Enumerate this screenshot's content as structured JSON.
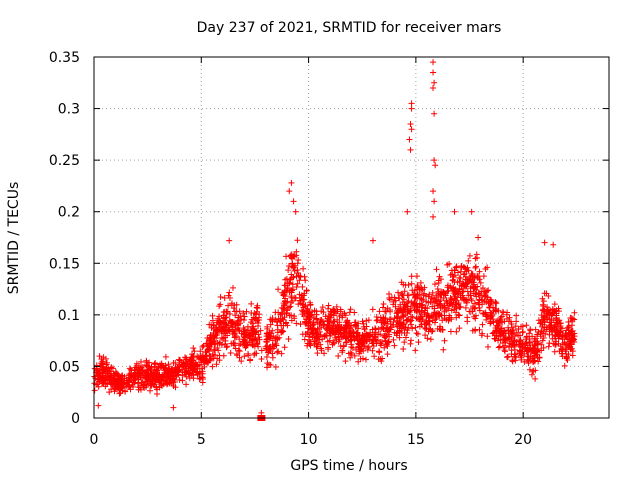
{
  "chart_data": {
    "type": "scatter",
    "title": "Day 237 of 2021, SRMTID for receiver mars",
    "xlabel": "GPS time / hours",
    "ylabel": "SRMTID / TECUs",
    "xlim": [
      0,
      24
    ],
    "ylim": [
      0,
      0.35
    ],
    "x_ticks": [
      0,
      5,
      10,
      15,
      20
    ],
    "x_tick_labels": [
      "0",
      "5",
      "10",
      "15",
      "20"
    ],
    "y_ticks": [
      0,
      0.05,
      0.1,
      0.15,
      0.2,
      0.25,
      0.3,
      0.35
    ],
    "y_tick_labels": [
      "0",
      "0.05",
      "0.1",
      "0.15",
      "0.2",
      "0.25",
      "0.3",
      "0.35"
    ],
    "grid": true,
    "marker": "+",
    "color": "#ff0000",
    "series": [
      {
        "name": "SRMTID",
        "envelope_note": "dense scatter summarised by its typical level (y_mid) and spread per hour",
        "x": [
          0,
          0.5,
          1,
          1.5,
          2,
          2.5,
          3,
          3.5,
          4,
          4.5,
          5,
          5.5,
          6,
          6.5,
          7,
          7.5,
          8,
          8.5,
          9,
          9.5,
          10,
          10.5,
          11,
          11.5,
          12,
          12.5,
          13,
          13.5,
          14,
          14.5,
          15,
          15.5,
          16,
          16.5,
          17,
          17.5,
          18,
          18.5,
          19,
          19.5,
          20,
          20.5,
          21,
          21.5,
          22,
          22.4
        ],
        "y_mid": [
          0.04,
          0.045,
          0.035,
          0.035,
          0.04,
          0.04,
          0.04,
          0.04,
          0.045,
          0.05,
          0.055,
          0.07,
          0.09,
          0.095,
          0.08,
          0.085,
          0.07,
          0.08,
          0.12,
          0.14,
          0.09,
          0.085,
          0.09,
          0.085,
          0.08,
          0.075,
          0.08,
          0.085,
          0.095,
          0.1,
          0.11,
          0.1,
          0.11,
          0.115,
          0.12,
          0.13,
          0.12,
          0.1,
          0.085,
          0.075,
          0.07,
          0.06,
          0.1,
          0.09,
          0.07,
          0.085
        ],
        "spread": [
          0.02,
          0.02,
          0.015,
          0.015,
          0.02,
          0.02,
          0.02,
          0.02,
          0.02,
          0.02,
          0.025,
          0.035,
          0.045,
          0.045,
          0.035,
          0.035,
          0.03,
          0.04,
          0.06,
          0.05,
          0.035,
          0.03,
          0.035,
          0.035,
          0.03,
          0.03,
          0.03,
          0.035,
          0.04,
          0.04,
          0.05,
          0.04,
          0.05,
          0.05,
          0.05,
          0.05,
          0.05,
          0.045,
          0.03,
          0.03,
          0.03,
          0.03,
          0.04,
          0.035,
          0.03,
          0.03
        ]
      }
    ],
    "outliers": [
      {
        "x": 14.8,
        "y": 0.305
      },
      {
        "x": 14.8,
        "y": 0.3
      },
      {
        "x": 14.75,
        "y": 0.285
      },
      {
        "x": 14.7,
        "y": 0.27
      },
      {
        "x": 14.75,
        "y": 0.26
      },
      {
        "x": 14.8,
        "y": 0.28
      },
      {
        "x": 15.8,
        "y": 0.345
      },
      {
        "x": 15.8,
        "y": 0.335
      },
      {
        "x": 15.85,
        "y": 0.325
      },
      {
        "x": 15.8,
        "y": 0.32
      },
      {
        "x": 15.85,
        "y": 0.295
      },
      {
        "x": 15.85,
        "y": 0.25
      },
      {
        "x": 15.9,
        "y": 0.245
      },
      {
        "x": 15.8,
        "y": 0.22
      },
      {
        "x": 15.85,
        "y": 0.21
      },
      {
        "x": 15.8,
        "y": 0.195
      },
      {
        "x": 9.2,
        "y": 0.228
      },
      {
        "x": 9.1,
        "y": 0.22
      },
      {
        "x": 9.3,
        "y": 0.21
      },
      {
        "x": 9.4,
        "y": 0.2
      },
      {
        "x": 6.3,
        "y": 0.172
      },
      {
        "x": 17.6,
        "y": 0.2
      },
      {
        "x": 16.8,
        "y": 0.2
      },
      {
        "x": 21.0,
        "y": 0.17
      },
      {
        "x": 21.4,
        "y": 0.168
      },
      {
        "x": 14.6,
        "y": 0.2
      },
      {
        "x": 17.9,
        "y": 0.175
      },
      {
        "x": 13.0,
        "y": 0.172
      },
      {
        "x": 7.8,
        "y": 0.005
      },
      {
        "x": 0.2,
        "y": 0.012
      },
      {
        "x": 3.7,
        "y": 0.01
      }
    ],
    "square_markers": [
      {
        "x": 7.8,
        "y": 0.0
      }
    ]
  }
}
